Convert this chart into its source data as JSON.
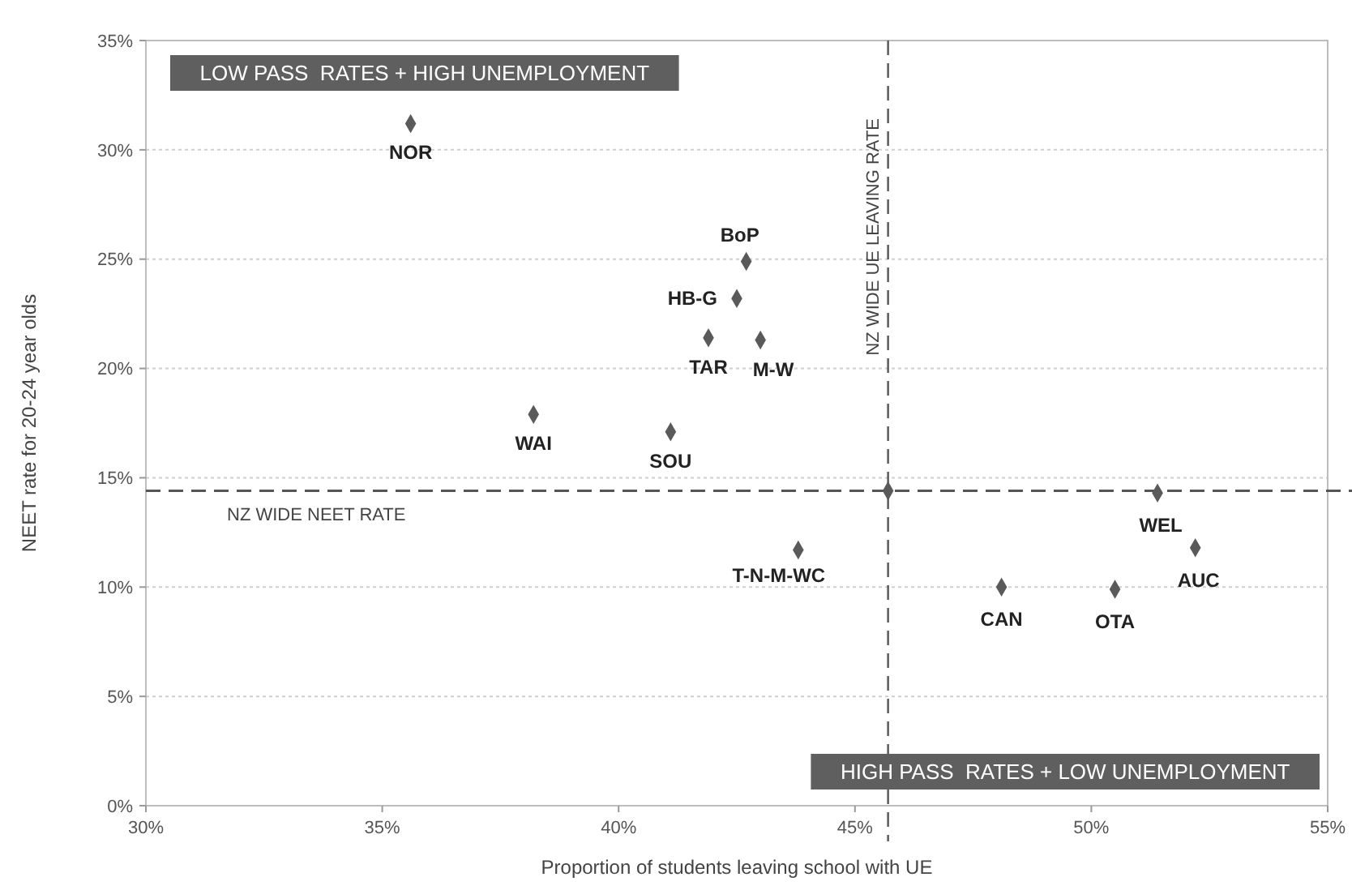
{
  "chart_data": {
    "type": "scatter",
    "xlabel": "Proportion of students leaving school with UE",
    "ylabel": "NEET rate for 20-24 year olds",
    "series": [
      {
        "color": "#5a5a5a",
        "x": [
          35.6,
          38.2,
          41.1,
          42.7,
          42.5,
          41.9,
          43.0,
          45.7,
          43.8,
          48.1,
          50.5,
          51.4,
          52.2
        ],
        "values": [
          31.2,
          17.9,
          17.1,
          24.9,
          23.2,
          21.4,
          21.3,
          14.4,
          11.7,
          10.0,
          9.9,
          14.3,
          11.8
        ]
      }
    ],
    "xlim": [
      30,
      55
    ],
    "ylim": [
      0,
      35
    ],
    "xticks": [
      {
        "value": 30,
        "label": "30%"
      },
      {
        "value": 35,
        "label": "35%"
      },
      {
        "value": 40,
        "label": "40%"
      },
      {
        "value": 45,
        "label": "45%"
      },
      {
        "value": 50,
        "label": "50%"
      },
      {
        "value": 55,
        "label": "55%"
      }
    ],
    "yticks": [
      {
        "value": 0,
        "label": "0%"
      },
      {
        "value": 5,
        "label": "5%"
      },
      {
        "value": 10,
        "label": "10%"
      },
      {
        "value": 15,
        "label": "15%"
      },
      {
        "value": 20,
        "label": "20%"
      },
      {
        "value": 25,
        "label": "25%"
      },
      {
        "value": 30,
        "label": "30%"
      },
      {
        "value": 35,
        "label": "35%"
      }
    ],
    "grid": "y",
    "marker": "diamond",
    "ref_lines": [
      {
        "axis": "y",
        "value": 14.4,
        "label": "NZ WIDE NEET RATE",
        "line_style": "dashed",
        "color": "#555555"
      },
      {
        "axis": "x",
        "value": 45.7,
        "label": "NZ WIDE UE LEAVING RATE",
        "line_style": "dashed",
        "color": "#555555"
      }
    ],
    "annotations": [
      "LOW PASS  RATES + HIGH UNEMPLOYMENT",
      "HIGH PASS  RATES + LOW UNEMPLOYMENT",
      {
        "text": "NOR",
        "x": 35.6,
        "y": 31.2
      },
      {
        "text": "WAI",
        "x": 38.2,
        "y": 17.9
      },
      {
        "text": "SOU",
        "x": 41.1,
        "y": 17.1
      },
      {
        "text": "BoP",
        "x": 42.7,
        "y": 24.9
      },
      {
        "text": "HB-G",
        "x": 42.5,
        "y": 23.2
      },
      {
        "text": "TAR",
        "x": 41.9,
        "y": 21.4
      },
      {
        "text": "M-W",
        "x": 43.0,
        "y": 21.3
      },
      {
        "text": "T-N-M-WC",
        "x": 43.8,
        "y": 11.7
      },
      {
        "text": "CAN",
        "x": 48.1,
        "y": 10.0
      },
      {
        "text": "OTA",
        "x": 50.5,
        "y": 9.9
      },
      {
        "text": "WEL",
        "x": 51.4,
        "y": 14.3
      },
      {
        "text": "AUC",
        "x": 52.2,
        "y": 11.8
      }
    ]
  }
}
